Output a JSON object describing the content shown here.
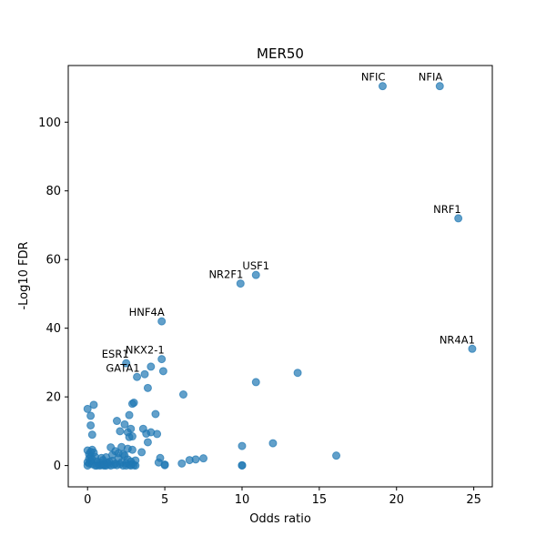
{
  "chart_data": {
    "type": "scatter",
    "title": "MER50",
    "xlabel": "Odds ratio",
    "ylabel": "-Log10 FDR",
    "xlim": [
      -1.25,
      26.2
    ],
    "ylim": [
      -6.2,
      116.5
    ],
    "xticks": [
      "0",
      "5",
      "10",
      "15",
      "20",
      "25"
    ],
    "xtick_values": [
      0,
      5,
      10,
      15,
      20,
      25
    ],
    "yticks": [
      "0",
      "20",
      "40",
      "60",
      "80",
      "100"
    ],
    "ytick_values": [
      0,
      20,
      40,
      60,
      80,
      100
    ],
    "point_color": "#1f77b4",
    "point_alpha": 0.7,
    "points": [
      {
        "x": 19.1,
        "y": 110.5,
        "label": "NFIC"
      },
      {
        "x": 22.8,
        "y": 110.5,
        "label": "NFIA"
      },
      {
        "x": 24.0,
        "y": 72.0,
        "label": "NRF1"
      },
      {
        "x": 10.9,
        "y": 55.5,
        "label": "USF1"
      },
      {
        "x": 9.9,
        "y": 53.0,
        "label": "NR2F1"
      },
      {
        "x": 4.8,
        "y": 42.0,
        "label": "HNF4A"
      },
      {
        "x": 24.9,
        "y": 34.0,
        "label": "NR4A1"
      },
      {
        "x": 4.8,
        "y": 31.0,
        "label": "NKX2-1"
      },
      {
        "x": 2.5,
        "y": 29.8,
        "label": "ESR1"
      },
      {
        "x": 3.2,
        "y": 25.8,
        "label": "GATA1"
      },
      {
        "x": 13.6,
        "y": 27.0
      },
      {
        "x": 10.9,
        "y": 24.3
      },
      {
        "x": 6.2,
        "y": 20.7
      },
      {
        "x": 4.1,
        "y": 28.8
      },
      {
        "x": 4.9,
        "y": 27.5
      },
      {
        "x": 3.7,
        "y": 26.6
      },
      {
        "x": 3.9,
        "y": 22.6
      },
      {
        "x": 3.0,
        "y": 18.3
      },
      {
        "x": 2.9,
        "y": 18.0
      },
      {
        "x": 0.4,
        "y": 17.7
      },
      {
        "x": 0.0,
        "y": 16.5
      },
      {
        "x": 0.2,
        "y": 14.5
      },
      {
        "x": 2.7,
        "y": 14.7
      },
      {
        "x": 4.4,
        "y": 15.0
      },
      {
        "x": 1.9,
        "y": 13.0
      },
      {
        "x": 2.4,
        "y": 12.0
      },
      {
        "x": 0.2,
        "y": 11.7
      },
      {
        "x": 2.8,
        "y": 10.7
      },
      {
        "x": 3.6,
        "y": 10.7
      },
      {
        "x": 2.1,
        "y": 10.0
      },
      {
        "x": 2.6,
        "y": 9.7
      },
      {
        "x": 3.8,
        "y": 9.3
      },
      {
        "x": 4.1,
        "y": 9.7
      },
      {
        "x": 4.5,
        "y": 9.2
      },
      {
        "x": 0.3,
        "y": 9.0
      },
      {
        "x": 2.7,
        "y": 8.3
      },
      {
        "x": 2.9,
        "y": 8.5
      },
      {
        "x": 3.9,
        "y": 6.8
      },
      {
        "x": 12.0,
        "y": 6.5
      },
      {
        "x": 10.0,
        "y": 5.7
      },
      {
        "x": 1.5,
        "y": 5.3
      },
      {
        "x": 2.2,
        "y": 5.4
      },
      {
        "x": 2.9,
        "y": 4.6
      },
      {
        "x": 3.5,
        "y": 3.9
      },
      {
        "x": 16.1,
        "y": 2.9
      },
      {
        "x": 4.7,
        "y": 2.2
      },
      {
        "x": 7.0,
        "y": 1.8
      },
      {
        "x": 7.5,
        "y": 2.1
      },
      {
        "x": 6.6,
        "y": 1.6
      },
      {
        "x": 6.1,
        "y": 0.6
      },
      {
        "x": 4.6,
        "y": 0.9
      },
      {
        "x": 5.0,
        "y": 0.3
      },
      {
        "x": 5.0,
        "y": 0.1
      },
      {
        "x": 10.0,
        "y": 0.1
      },
      {
        "x": 10.0,
        "y": 0.0
      },
      {
        "x": 0.0,
        "y": 0.0
      },
      {
        "x": 0.1,
        "y": 0.6
      },
      {
        "x": 0.2,
        "y": 1.3
      },
      {
        "x": 0.1,
        "y": 2.0
      },
      {
        "x": 0.2,
        "y": 2.7
      },
      {
        "x": 0.1,
        "y": 3.3
      },
      {
        "x": 0.2,
        "y": 4.0
      },
      {
        "x": 0.3,
        "y": 4.6
      },
      {
        "x": 0.4,
        "y": 3.8
      },
      {
        "x": 0.5,
        "y": 2.5
      },
      {
        "x": 0.6,
        "y": 1.2
      },
      {
        "x": 0.3,
        "y": 0.4
      },
      {
        "x": 0.7,
        "y": 0.3
      },
      {
        "x": 0.8,
        "y": 0.9
      },
      {
        "x": 0.9,
        "y": 0.2
      },
      {
        "x": 1.0,
        "y": 0.1
      },
      {
        "x": 1.1,
        "y": 0.5
      },
      {
        "x": 1.2,
        "y": 0.0
      },
      {
        "x": 1.3,
        "y": 0.8
      },
      {
        "x": 1.4,
        "y": 0.3
      },
      {
        "x": 1.5,
        "y": 0.0
      },
      {
        "x": 1.6,
        "y": 1.4
      },
      {
        "x": 1.7,
        "y": 0.2
      },
      {
        "x": 1.8,
        "y": 0.6
      },
      {
        "x": 1.9,
        "y": 0.1
      },
      {
        "x": 2.0,
        "y": 2.1
      },
      {
        "x": 2.1,
        "y": 0.4
      },
      {
        "x": 2.2,
        "y": 1.0
      },
      {
        "x": 2.3,
        "y": 0.0
      },
      {
        "x": 2.4,
        "y": 2.9
      },
      {
        "x": 2.5,
        "y": 0.7
      },
      {
        "x": 2.6,
        "y": 1.8
      },
      {
        "x": 2.7,
        "y": 0.2
      },
      {
        "x": 2.8,
        "y": 1.2
      },
      {
        "x": 2.9,
        "y": 0.5
      },
      {
        "x": 3.0,
        "y": 0.1
      },
      {
        "x": 3.1,
        "y": 1.5
      },
      {
        "x": 1.2,
        "y": 2.4
      },
      {
        "x": 1.6,
        "y": 3.1
      },
      {
        "x": 2.0,
        "y": 3.6
      },
      {
        "x": 1.0,
        "y": 1.6
      },
      {
        "x": 0.9,
        "y": 2.2
      },
      {
        "x": 0.5,
        "y": 0.0
      },
      {
        "x": 0.0,
        "y": 1.0
      },
      {
        "x": 0.0,
        "y": 4.4
      },
      {
        "x": 0.3,
        "y": 1.8
      },
      {
        "x": 1.8,
        "y": 4.2
      },
      {
        "x": 2.3,
        "y": 3.3
      },
      {
        "x": 2.6,
        "y": 4.9
      },
      {
        "x": 1.4,
        "y": 1.1
      },
      {
        "x": 1.1,
        "y": 0.0
      },
      {
        "x": 0.8,
        "y": 0.0
      },
      {
        "x": 0.6,
        "y": 0.0
      },
      {
        "x": 2.5,
        "y": 0.0
      },
      {
        "x": 2.8,
        "y": 0.0
      },
      {
        "x": 3.1,
        "y": 0.0
      }
    ],
    "annotations": [
      {
        "text": "NFIC",
        "anchor_x": 19.1,
        "anchor_y": 110.5,
        "align": "end"
      },
      {
        "text": "NFIA",
        "anchor_x": 22.8,
        "anchor_y": 110.5,
        "align": "end"
      },
      {
        "text": "NRF1",
        "anchor_x": 24.0,
        "anchor_y": 72.0,
        "align": "end"
      },
      {
        "text": "USF1",
        "anchor_x": 10.9,
        "anchor_y": 55.5,
        "align": "middle"
      },
      {
        "text": "NR2F1",
        "anchor_x": 9.9,
        "anchor_y": 53.0,
        "align": "end"
      },
      {
        "text": "HNF4A",
        "anchor_x": 4.8,
        "anchor_y": 42.0,
        "align": "end"
      },
      {
        "text": "NR4A1",
        "anchor_x": 24.9,
        "anchor_y": 34.0,
        "align": "end"
      },
      {
        "text": "NKX2-1",
        "anchor_x": 4.8,
        "anchor_y": 31.0,
        "align": "end"
      },
      {
        "text": "ESR1",
        "anchor_x": 2.5,
        "anchor_y": 29.8,
        "align": "end"
      },
      {
        "text": "GATA1",
        "anchor_x": 3.2,
        "anchor_y": 25.8,
        "align": "end"
      }
    ]
  }
}
